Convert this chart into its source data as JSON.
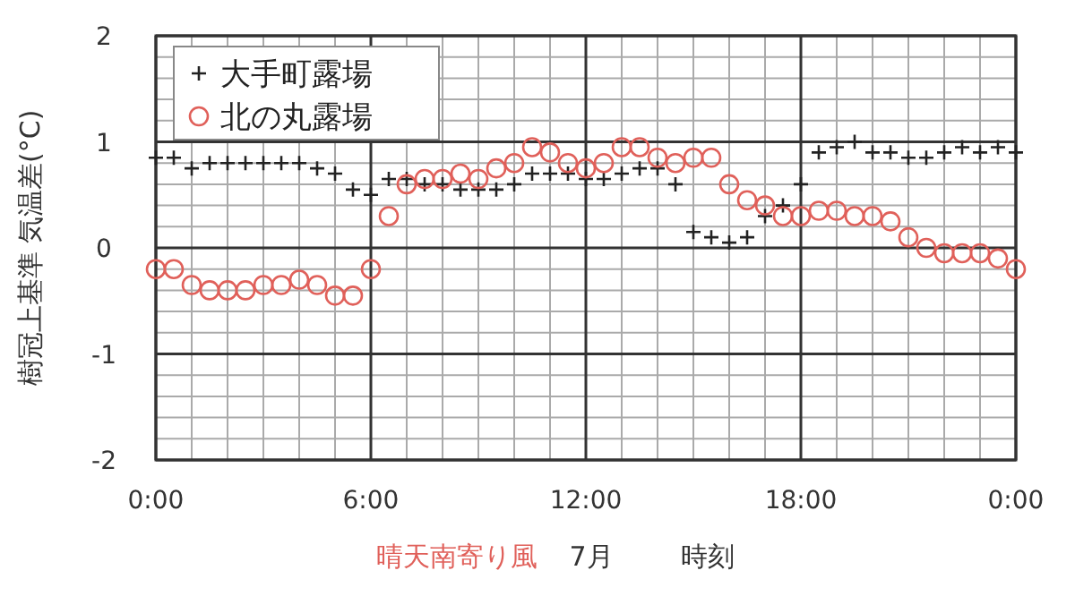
{
  "chart_data": {
    "type": "scatter",
    "ylabel": "樹冠上基準 気温差(°C)",
    "xlabel": "時刻",
    "annotations": [
      "晴天南寄り風",
      "7月"
    ],
    "xlim": [
      0,
      24
    ],
    "xticks": [
      {
        "value": 0,
        "label": "0:00"
      },
      {
        "value": 6,
        "label": "6:00"
      },
      {
        "value": 12,
        "label": "12:00"
      },
      {
        "value": 18,
        "label": "18:00"
      },
      {
        "value": 24,
        "label": "0:00"
      }
    ],
    "ylim": [
      -2,
      2
    ],
    "yticks": [
      -2,
      -1,
      0,
      1,
      2
    ],
    "grid": true,
    "legend": "top left",
    "x": [
      0,
      0.5,
      1,
      1.5,
      2,
      2.5,
      3,
      3.5,
      4,
      4.5,
      5,
      5.5,
      6,
      6.5,
      7,
      7.5,
      8,
      8.5,
      9,
      9.5,
      10,
      10.5,
      11,
      11.5,
      12,
      12.5,
      13,
      13.5,
      14,
      14.5,
      15,
      15.5,
      16,
      16.5,
      17,
      17.5,
      18,
      18.5,
      19,
      19.5,
      20,
      20.5,
      21,
      21.5,
      22,
      22.5,
      23,
      23.5,
      24
    ],
    "series": [
      {
        "name": "大手町露場",
        "color": "#222222",
        "marker": "cross",
        "values": [
          0.85,
          0.85,
          0.75,
          0.8,
          0.8,
          0.8,
          0.8,
          0.8,
          0.8,
          0.75,
          0.7,
          0.55,
          0.5,
          0.65,
          0.65,
          0.6,
          0.6,
          0.55,
          0.55,
          0.55,
          0.6,
          0.7,
          0.7,
          0.7,
          0.65,
          0.65,
          0.7,
          0.75,
          0.75,
          0.6,
          0.15,
          0.1,
          0.05,
          0.1,
          0.3,
          0.4,
          0.6,
          0.9,
          0.95,
          1.0,
          0.9,
          0.9,
          0.85,
          0.85,
          0.9,
          0.95,
          0.9,
          0.95,
          0.9
        ]
      },
      {
        "name": "北の丸露場",
        "color": "#e0605a",
        "marker": "circle",
        "values": [
          -0.2,
          -0.2,
          -0.35,
          -0.4,
          -0.4,
          -0.4,
          -0.35,
          -0.35,
          -0.3,
          -0.35,
          -0.45,
          -0.45,
          -0.2,
          0.3,
          0.6,
          0.65,
          0.65,
          0.7,
          0.65,
          0.75,
          0.8,
          0.95,
          0.9,
          0.8,
          0.75,
          0.8,
          0.95,
          0.95,
          0.85,
          0.8,
          0.85,
          0.85,
          0.6,
          0.45,
          0.4,
          0.3,
          0.3,
          0.35,
          0.35,
          0.3,
          0.3,
          0.25,
          0.1,
          0.0,
          -0.05,
          -0.05,
          -0.05,
          -0.1,
          -0.2
        ]
      }
    ]
  }
}
